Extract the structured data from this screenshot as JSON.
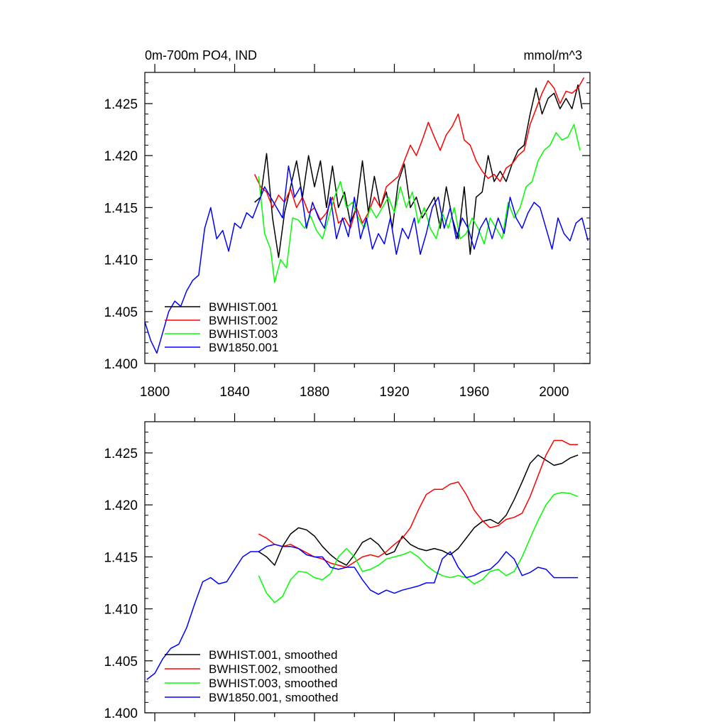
{
  "chart_data": [
    {
      "type": "line",
      "title_left": "0m-700m PO4, IND",
      "title_right": "mmol/m^3",
      "xlabel": "",
      "ylabel": "",
      "xlim": [
        1795,
        2018
      ],
      "ylim": [
        1.4,
        1.428
      ],
      "xticks": [
        1800,
        1840,
        1880,
        1920,
        1960,
        2000
      ],
      "xtick_labels": [
        "1800",
        "1840",
        "1880",
        "1920",
        "1960",
        "2000"
      ],
      "yticks": [
        1.4,
        1.405,
        1.41,
        1.415,
        1.42,
        1.425
      ],
      "ytick_labels": [
        "1.400",
        "1.405",
        "1.410",
        "1.415",
        "1.420",
        "1.425"
      ],
      "legend_position": "bottom-left",
      "series": [
        {
          "name": "BWHIST.001",
          "color": "#000000",
          "x": [
            1850,
            1853,
            1856,
            1859,
            1862,
            1865,
            1868,
            1871,
            1874,
            1877,
            1880,
            1883,
            1886,
            1889,
            1892,
            1895,
            1898,
            1901,
            1904,
            1907,
            1910,
            1913,
            1916,
            1919,
            1922,
            1925,
            1928,
            1931,
            1934,
            1937,
            1940,
            1943,
            1946,
            1949,
            1952,
            1955,
            1958,
            1961,
            1964,
            1967,
            1970,
            1973,
            1976,
            1979,
            1982,
            1985,
            1988,
            1991,
            1994,
            1997,
            2000,
            2003,
            2006,
            2009,
            2012,
            2014
          ],
          "y": [
            1.4155,
            1.416,
            1.4202,
            1.414,
            1.4102,
            1.4145,
            1.417,
            1.4195,
            1.416,
            1.42,
            1.417,
            1.4195,
            1.415,
            1.419,
            1.415,
            1.4165,
            1.4135,
            1.415,
            1.4195,
            1.4145,
            1.418,
            1.415,
            1.4165,
            1.413,
            1.4175,
            1.4192,
            1.415,
            1.416,
            1.414,
            1.415,
            1.416,
            1.413,
            1.417,
            1.414,
            1.412,
            1.417,
            1.4105,
            1.416,
            1.4165,
            1.42,
            1.4175,
            1.4185,
            1.4175,
            1.4192,
            1.4205,
            1.421,
            1.424,
            1.4265,
            1.424,
            1.4255,
            1.426,
            1.4245,
            1.4255,
            1.4245,
            1.4268,
            1.4245
          ]
        },
        {
          "name": "BWHIST.002",
          "color": "#ff0000",
          "x": [
            1850,
            1853,
            1856,
            1859,
            1862,
            1865,
            1868,
            1871,
            1874,
            1877,
            1880,
            1883,
            1886,
            1889,
            1892,
            1895,
            1898,
            1901,
            1904,
            1907,
            1910,
            1913,
            1916,
            1919,
            1922,
            1925,
            1928,
            1931,
            1934,
            1937,
            1940,
            1943,
            1946,
            1949,
            1952,
            1955,
            1958,
            1961,
            1964,
            1967,
            1970,
            1973,
            1976,
            1979,
            1982,
            1985,
            1988,
            1991,
            1994,
            1997,
            2000,
            2003,
            2006,
            2009,
            2012,
            2015
          ],
          "y": [
            1.4182,
            1.417,
            1.4165,
            1.415,
            1.4162,
            1.4155,
            1.4168,
            1.415,
            1.416,
            1.4145,
            1.415,
            1.4138,
            1.4145,
            1.416,
            1.4135,
            1.414,
            1.413,
            1.415,
            1.4135,
            1.4145,
            1.416,
            1.415,
            1.417,
            1.4175,
            1.418,
            1.4195,
            1.421,
            1.42,
            1.4215,
            1.4232,
            1.4218,
            1.4205,
            1.422,
            1.4228,
            1.424,
            1.4215,
            1.421,
            1.4195,
            1.4185,
            1.4178,
            1.4182,
            1.4175,
            1.4188,
            1.4192,
            1.42,
            1.4205,
            1.423,
            1.4245,
            1.426,
            1.4272,
            1.4265,
            1.425,
            1.4262,
            1.426,
            1.4265,
            1.4275
          ]
        },
        {
          "name": "BWHIST.003",
          "color": "#00ff00",
          "x": [
            1852,
            1855,
            1858,
            1860,
            1863,
            1866,
            1869,
            1872,
            1875,
            1878,
            1881,
            1884,
            1887,
            1890,
            1893,
            1896,
            1899,
            1902,
            1905,
            1908,
            1911,
            1914,
            1917,
            1920,
            1923,
            1926,
            1929,
            1932,
            1935,
            1938,
            1941,
            1944,
            1947,
            1950,
            1953,
            1956,
            1959,
            1962,
            1965,
            1968,
            1971,
            1974,
            1977,
            1980,
            1983,
            1986,
            1989,
            1992,
            1995,
            1998,
            2001,
            2004,
            2007,
            2010,
            2013
          ],
          "y": [
            1.418,
            1.4125,
            1.411,
            1.4078,
            1.41,
            1.4092,
            1.414,
            1.4138,
            1.413,
            1.4142,
            1.4128,
            1.412,
            1.414,
            1.416,
            1.4175,
            1.415,
            1.4155,
            1.414,
            1.413,
            1.415,
            1.414,
            1.415,
            1.416,
            1.4145,
            1.417,
            1.415,
            1.4165,
            1.4135,
            1.415,
            1.413,
            1.412,
            1.4145,
            1.413,
            1.415,
            1.412,
            1.4125,
            1.414,
            1.413,
            1.4115,
            1.414,
            1.413,
            1.412,
            1.4155,
            1.414,
            1.415,
            1.417,
            1.4175,
            1.4195,
            1.4205,
            1.421,
            1.4222,
            1.4215,
            1.4218,
            1.423,
            1.4205
          ]
        },
        {
          "name": "BW1850.001",
          "color": "#0000ff",
          "x": [
            1795,
            1798,
            1801,
            1804,
            1807,
            1810,
            1813,
            1816,
            1819,
            1822,
            1825,
            1828,
            1831,
            1834,
            1837,
            1840,
            1843,
            1846,
            1849,
            1852,
            1855,
            1858,
            1861,
            1864,
            1867,
            1870,
            1873,
            1876,
            1879,
            1882,
            1885,
            1888,
            1891,
            1894,
            1897,
            1900,
            1903,
            1906,
            1909,
            1912,
            1915,
            1918,
            1921,
            1924,
            1927,
            1930,
            1933,
            1936,
            1939,
            1942,
            1945,
            1948,
            1951,
            1954,
            1957,
            1960,
            1963,
            1966,
            1969,
            1972,
            1975,
            1978,
            1981,
            1984,
            1987,
            1990,
            1993,
            1996,
            1999,
            2002,
            2005,
            2008,
            2011,
            2014,
            2017
          ],
          "y": [
            1.404,
            1.4022,
            1.401,
            1.403,
            1.405,
            1.406,
            1.4055,
            1.407,
            1.408,
            1.4085,
            1.413,
            1.415,
            1.412,
            1.4128,
            1.4108,
            1.4135,
            1.413,
            1.4145,
            1.414,
            1.4155,
            1.417,
            1.416,
            1.415,
            1.414,
            1.419,
            1.416,
            1.417,
            1.413,
            1.4155,
            1.414,
            1.413,
            1.416,
            1.412,
            1.414,
            1.4122,
            1.416,
            1.412,
            1.414,
            1.411,
            1.4125,
            1.4115,
            1.414,
            1.4105,
            1.413,
            1.412,
            1.414,
            1.4105,
            1.4125,
            1.415,
            1.416,
            1.413,
            1.415,
            1.412,
            1.414,
            1.413,
            1.411,
            1.413,
            1.414,
            1.412,
            1.414,
            1.4125,
            1.416,
            1.414,
            1.413,
            1.4145,
            1.4155,
            1.415,
            1.413,
            1.411,
            1.414,
            1.4125,
            1.4118,
            1.4135,
            1.414,
            1.4118
          ]
        }
      ]
    },
    {
      "type": "line",
      "xlabel": "",
      "ylabel": "",
      "xlim": [
        1795,
        2018
      ],
      "ylim": [
        1.4,
        1.428
      ],
      "xticks": [
        1800,
        1840,
        1880,
        1920,
        1960,
        2000
      ],
      "yticks": [
        1.4,
        1.405,
        1.41,
        1.415,
        1.42,
        1.425
      ],
      "ytick_labels": [
        "1.400",
        "1.405",
        "1.410",
        "1.415",
        "1.420",
        "1.425"
      ],
      "legend_position": "bottom-left",
      "series": [
        {
          "name": "BWHIST.001, smoothed",
          "color": "#000000",
          "x": [
            1852,
            1856,
            1860,
            1864,
            1868,
            1872,
            1876,
            1880,
            1884,
            1888,
            1892,
            1896,
            1900,
            1904,
            1908,
            1912,
            1916,
            1920,
            1924,
            1928,
            1932,
            1936,
            1940,
            1944,
            1948,
            1952,
            1956,
            1960,
            1964,
            1968,
            1972,
            1976,
            1980,
            1984,
            1988,
            1992,
            1996,
            2000,
            2004,
            2008,
            2012
          ],
          "y": [
            1.4155,
            1.415,
            1.4142,
            1.416,
            1.4172,
            1.4178,
            1.4176,
            1.417,
            1.416,
            1.4152,
            1.4146,
            1.4142,
            1.4152,
            1.4164,
            1.4168,
            1.4162,
            1.4152,
            1.4155,
            1.417,
            1.4162,
            1.4158,
            1.4156,
            1.4158,
            1.4156,
            1.4152,
            1.4158,
            1.4168,
            1.4178,
            1.4184,
            1.4186,
            1.4182,
            1.419,
            1.4205,
            1.4222,
            1.424,
            1.4248,
            1.4243,
            1.4238,
            1.424,
            1.4245,
            1.4248
          ]
        },
        {
          "name": "BWHIST.002, smoothed",
          "color": "#ff0000",
          "x": [
            1852,
            1856,
            1860,
            1864,
            1868,
            1872,
            1876,
            1880,
            1884,
            1888,
            1892,
            1896,
            1900,
            1904,
            1908,
            1912,
            1916,
            1920,
            1924,
            1928,
            1932,
            1936,
            1940,
            1944,
            1948,
            1952,
            1956,
            1960,
            1964,
            1968,
            1972,
            1976,
            1980,
            1984,
            1988,
            1992,
            1996,
            2000,
            2004,
            2008,
            2012
          ],
          "y": [
            1.4172,
            1.4168,
            1.4162,
            1.416,
            1.4162,
            1.4158,
            1.4154,
            1.415,
            1.4148,
            1.4144,
            1.4142,
            1.414,
            1.4145,
            1.415,
            1.4152,
            1.415,
            1.4155,
            1.4162,
            1.4168,
            1.4178,
            1.4195,
            1.421,
            1.4215,
            1.4215,
            1.422,
            1.4222,
            1.421,
            1.4195,
            1.4185,
            1.4178,
            1.418,
            1.4186,
            1.4188,
            1.4192,
            1.4208,
            1.4228,
            1.4248,
            1.4262,
            1.4262,
            1.4258,
            1.4258
          ]
        },
        {
          "name": "BWHIST.003, smoothed",
          "color": "#00ff00",
          "x": [
            1852,
            1856,
            1860,
            1864,
            1868,
            1872,
            1876,
            1880,
            1884,
            1888,
            1892,
            1896,
            1900,
            1904,
            1908,
            1912,
            1916,
            1920,
            1924,
            1928,
            1932,
            1936,
            1940,
            1944,
            1948,
            1952,
            1956,
            1960,
            1964,
            1968,
            1972,
            1976,
            1980,
            1984,
            1988,
            1992,
            1996,
            2000,
            2004,
            2008,
            2012
          ],
          "y": [
            1.4132,
            1.4115,
            1.4106,
            1.4112,
            1.4128,
            1.4136,
            1.4135,
            1.413,
            1.4128,
            1.4134,
            1.415,
            1.4158,
            1.415,
            1.4136,
            1.4138,
            1.4142,
            1.4148,
            1.415,
            1.4152,
            1.4155,
            1.415,
            1.4142,
            1.4136,
            1.4132,
            1.413,
            1.4132,
            1.413,
            1.4124,
            1.4128,
            1.4136,
            1.4138,
            1.4132,
            1.4136,
            1.415,
            1.4168,
            1.4185,
            1.42,
            1.421,
            1.4212,
            1.4211,
            1.4208
          ]
        },
        {
          "name": "BW1850.001, smoothed",
          "color": "#0000ff",
          "x": [
            1796,
            1800,
            1804,
            1808,
            1812,
            1816,
            1820,
            1824,
            1828,
            1832,
            1836,
            1840,
            1844,
            1848,
            1852,
            1856,
            1860,
            1864,
            1868,
            1872,
            1876,
            1880,
            1884,
            1888,
            1892,
            1896,
            1900,
            1904,
            1908,
            1912,
            1916,
            1920,
            1924,
            1928,
            1932,
            1936,
            1940,
            1944,
            1948,
            1952,
            1956,
            1960,
            1964,
            1968,
            1972,
            1976,
            1980,
            1984,
            1988,
            1992,
            1996,
            2000,
            2004,
            2008,
            2012
          ],
          "y": [
            1.4032,
            1.4038,
            1.4052,
            1.4062,
            1.4066,
            1.4082,
            1.4105,
            1.4126,
            1.413,
            1.4124,
            1.4126,
            1.4138,
            1.415,
            1.4155,
            1.4155,
            1.416,
            1.4162,
            1.416,
            1.416,
            1.4158,
            1.4152,
            1.415,
            1.415,
            1.414,
            1.4138,
            1.414,
            1.414,
            1.4128,
            1.4118,
            1.4114,
            1.4118,
            1.4115,
            1.4118,
            1.412,
            1.4122,
            1.4125,
            1.4125,
            1.4148,
            1.4155,
            1.414,
            1.413,
            1.4132,
            1.4136,
            1.4138,
            1.4145,
            1.4155,
            1.4148,
            1.4132,
            1.4135,
            1.414,
            1.4138,
            1.413,
            1.413,
            1.413,
            1.413
          ]
        }
      ]
    }
  ]
}
